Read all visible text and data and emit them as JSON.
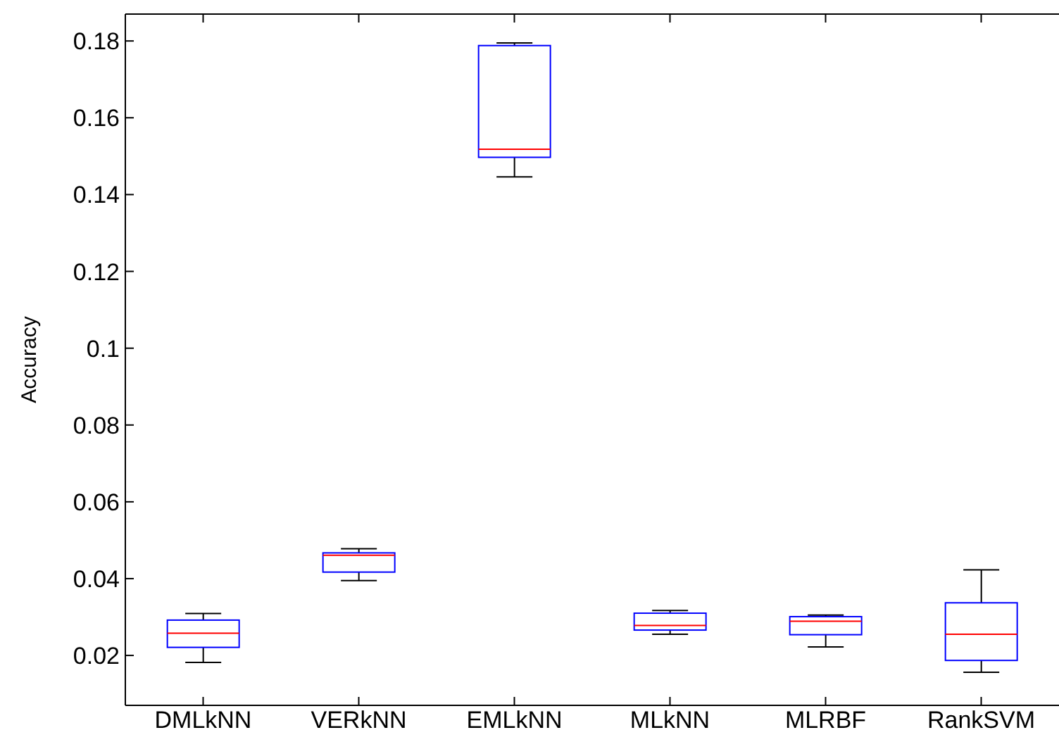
{
  "chart_data": {
    "type": "box",
    "ylabel": "Accuracy",
    "categories": [
      "DMLkNN",
      "VERkNN",
      "EMLkNN",
      "MLkNN",
      "MLRBF",
      "RankSVM"
    ],
    "color": "#0000ff",
    "boxes": [
      {
        "low": 0.0182,
        "q1": 0.0221,
        "median": 0.0258,
        "q3": 0.0292,
        "high": 0.0309
      },
      {
        "low": 0.0395,
        "q1": 0.0417,
        "median": 0.0461,
        "q3": 0.0467,
        "high": 0.0478
      },
      {
        "low": 0.1446,
        "q1": 0.1497,
        "median": 0.1518,
        "q3": 0.1788,
        "high": 0.1795
      },
      {
        "low": 0.0255,
        "q1": 0.0266,
        "median": 0.0278,
        "q3": 0.031,
        "high": 0.0317
      },
      {
        "low": 0.0222,
        "q1": 0.0254,
        "median": 0.0289,
        "q3": 0.0301,
        "high": 0.0305
      },
      {
        "low": 0.0156,
        "q1": 0.0187,
        "median": 0.0255,
        "q3": 0.0337,
        "high": 0.0423
      }
    ],
    "ylim": [
      0.007,
      0.187
    ],
    "yticks": [
      0.02,
      0.04,
      0.06,
      0.08,
      0.1,
      0.12,
      0.14,
      0.16,
      0.18
    ],
    "grid": false
  }
}
